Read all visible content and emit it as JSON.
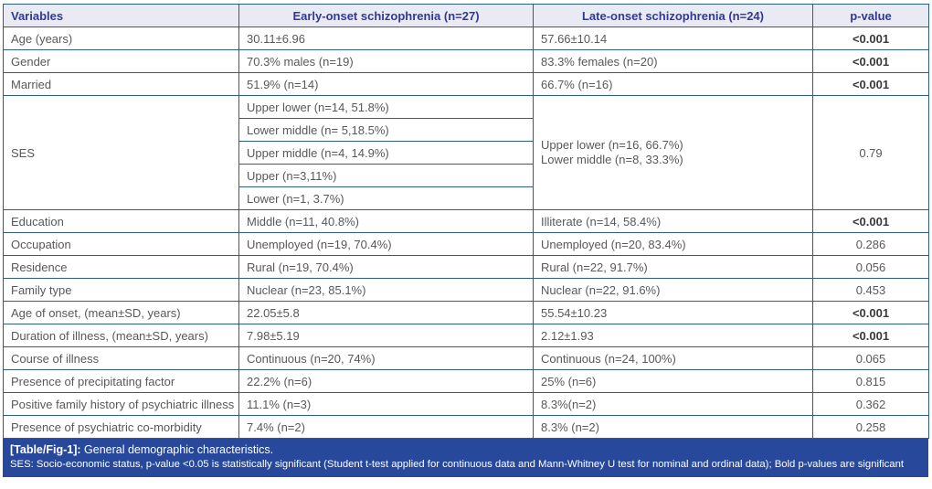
{
  "table": {
    "columns": [
      "Variables",
      "Early-onset schizophrenia (n=27)",
      "Late-onset schizophrenia (n=24)",
      "p-value"
    ],
    "rows": [
      {
        "cells": [
          {
            "c": "var",
            "t": "Age (years)"
          },
          {
            "c": "early",
            "t": "30.11±6.96"
          },
          {
            "c": "late",
            "t": "57.66±10.14"
          },
          {
            "c": "p",
            "t": "<0.001",
            "b": true
          }
        ]
      },
      {
        "cells": [
          {
            "c": "var",
            "t": "Gender"
          },
          {
            "c": "early",
            "t": "70.3% males (n=19)"
          },
          {
            "c": "late",
            "t": "83.3% females (n=20)"
          },
          {
            "c": "p",
            "t": "<0.001",
            "b": true
          }
        ]
      },
      {
        "cells": [
          {
            "c": "var",
            "t": "Married"
          },
          {
            "c": "early",
            "t": "51.9% (n=14)"
          },
          {
            "c": "late",
            "t": "66.7% (n=16)"
          },
          {
            "c": "p",
            "t": "<0.001",
            "b": true
          }
        ]
      },
      {
        "cells": [
          {
            "c": "var",
            "t": "SES",
            "rs": 5
          },
          {
            "c": "early",
            "t": "Upper lower (n=14, 51.8%)"
          },
          {
            "c": "late",
            "lines": [
              "Upper lower (n=16, 66.7%)",
              "Lower middle (n=8, 33.3%)"
            ],
            "rs": 5
          },
          {
            "c": "p",
            "t": "0.79",
            "rs": 5
          }
        ]
      },
      {
        "cells": [
          {
            "c": "early",
            "t": "Lower middle (n= 5,18.5%)"
          }
        ]
      },
      {
        "cells": [
          {
            "c": "early",
            "t": "Upper middle (n=4, 14.9%)"
          }
        ]
      },
      {
        "cells": [
          {
            "c": "early",
            "t": "Upper (n=3,11%)"
          }
        ]
      },
      {
        "cells": [
          {
            "c": "early",
            "t": "Lower (n=1, 3.7%)"
          }
        ]
      },
      {
        "cells": [
          {
            "c": "var",
            "t": "Education"
          },
          {
            "c": "early",
            "t": "Middle (n=11, 40.8%)"
          },
          {
            "c": "late",
            "t": "Illiterate (n=14, 58.4%)"
          },
          {
            "c": "p",
            "t": "<0.001",
            "b": true
          }
        ]
      },
      {
        "cells": [
          {
            "c": "var",
            "t": "Occupation"
          },
          {
            "c": "early",
            "t": "Unemployed (n=19, 70.4%)"
          },
          {
            "c": "late",
            "t": "Unemployed (n=20, 83.4%)"
          },
          {
            "c": "p",
            "t": "0.286"
          }
        ]
      },
      {
        "cells": [
          {
            "c": "var",
            "t": "Residence"
          },
          {
            "c": "early",
            "t": "Rural (n=19, 70.4%)"
          },
          {
            "c": "late",
            "t": "Rural (n=22, 91.7%)"
          },
          {
            "c": "p",
            "t": "0.056"
          }
        ]
      },
      {
        "cells": [
          {
            "c": "var",
            "t": "Family type"
          },
          {
            "c": "early",
            "t": "Nuclear (n=23, 85.1%)"
          },
          {
            "c": "late",
            "t": "Nuclear (n=22, 91.6%)"
          },
          {
            "c": "p",
            "t": "0.453"
          }
        ]
      },
      {
        "cells": [
          {
            "c": "var",
            "t": "Age of onset, (mean±SD, years)"
          },
          {
            "c": "early",
            "t": "22.05±5.8"
          },
          {
            "c": "late",
            "t": "55.54±10.23"
          },
          {
            "c": "p",
            "t": "<0.001",
            "b": true
          }
        ]
      },
      {
        "cells": [
          {
            "c": "var",
            "t": "Duration of illness, (mean±SD, years)"
          },
          {
            "c": "early",
            "t": "7.98±5.19"
          },
          {
            "c": "late",
            "t": "2.12±1.93"
          },
          {
            "c": "p",
            "t": "<0.001",
            "b": true
          }
        ]
      },
      {
        "cells": [
          {
            "c": "var",
            "t": "Course of illness"
          },
          {
            "c": "early",
            "t": "Continuous (n=20, 74%)"
          },
          {
            "c": "late",
            "t": "Continuous (n=24, 100%)"
          },
          {
            "c": "p",
            "t": "0.065"
          }
        ]
      },
      {
        "cells": [
          {
            "c": "var",
            "t": "Presence of precipitating factor"
          },
          {
            "c": "early",
            "t": "22.2% (n=6)"
          },
          {
            "c": "late",
            "t": "25% (n=6)"
          },
          {
            "c": "p",
            "t": "0.815"
          }
        ]
      },
      {
        "cells": [
          {
            "c": "var",
            "t": "Positive family history of psychiatric illness"
          },
          {
            "c": "early",
            "t": "11.1% (n=3)"
          },
          {
            "c": "late",
            "t": "8.3%(n=2)"
          },
          {
            "c": "p",
            "t": "0.362"
          }
        ]
      },
      {
        "cells": [
          {
            "c": "var",
            "t": "Presence of psychiatric co-morbidity"
          },
          {
            "c": "early",
            "t": "7.4% (n=2)"
          },
          {
            "c": "late",
            "t": "8.3% (n=2)"
          },
          {
            "c": "p",
            "t": "0.258"
          }
        ]
      }
    ]
  },
  "footer": {
    "tag": "[Table/Fig-1]:",
    "title": " General demographic characteristics.",
    "note": "SES: Socio-economic status, p-value <0.05 is statistically significant (Student t-test applied for continuous data and Mann-Whitney U test for nominal and ordinal data); Bold p-values are significant"
  },
  "colors": {
    "border": "#2d5f82",
    "header_bg": "#eaeaf4",
    "header_text": "#2d3b96",
    "body_text": "#58595b",
    "caption_bg": "#28489b",
    "caption_text": "#ffffff"
  }
}
